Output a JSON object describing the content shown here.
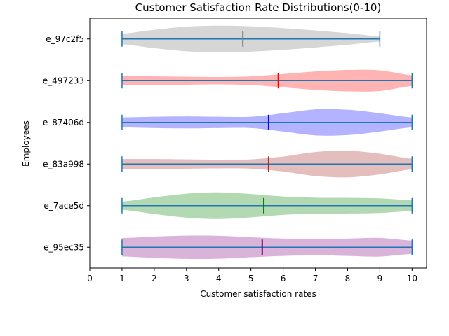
{
  "chart_data": {
    "type": "violin",
    "title": "Customer Satisfaction Rate Distributions(0-10)",
    "xlabel": "Customer satisfaction rates",
    "ylabel": "Employees",
    "xlim": [
      0,
      10.45
    ],
    "xticks": [
      0,
      1,
      2,
      3,
      4,
      5,
      6,
      7,
      8,
      9,
      10
    ],
    "grid": false,
    "series": [
      {
        "name": "e_97c2f5",
        "min": 1,
        "max": 9,
        "mean": 4.75,
        "color": "#808080",
        "fill": "#d6d6d6",
        "density": [
          [
            1,
            0.32
          ],
          [
            2,
            0.55
          ],
          [
            3,
            0.74
          ],
          [
            4,
            0.8
          ],
          [
            5,
            0.76
          ],
          [
            6,
            0.65
          ],
          [
            7,
            0.51
          ],
          [
            8,
            0.35
          ],
          [
            9,
            0.16
          ]
        ]
      },
      {
        "name": "e_497233",
        "min": 1,
        "max": 10,
        "mean": 5.85,
        "color": "#ff0000",
        "fill": "#ffb3b3",
        "density": [
          [
            1,
            0.28
          ],
          [
            2,
            0.26
          ],
          [
            3,
            0.24
          ],
          [
            4,
            0.22
          ],
          [
            5,
            0.26
          ],
          [
            6,
            0.4
          ],
          [
            7,
            0.55
          ],
          [
            8,
            0.64
          ],
          [
            9,
            0.62
          ],
          [
            10,
            0.32
          ]
        ]
      },
      {
        "name": "e_87406d",
        "min": 1,
        "max": 10,
        "mean": 5.55,
        "color": "#0000ff",
        "fill": "#b3b3ff",
        "density": [
          [
            1,
            0.3
          ],
          [
            2,
            0.34
          ],
          [
            3,
            0.36
          ],
          [
            4,
            0.34
          ],
          [
            5,
            0.34
          ],
          [
            6,
            0.55
          ],
          [
            7,
            0.78
          ],
          [
            8,
            0.76
          ],
          [
            9,
            0.55
          ],
          [
            10,
            0.3
          ]
        ]
      },
      {
        "name": "e_83a998",
        "min": 1,
        "max": 10,
        "mean": 5.55,
        "color": "#a52a2a",
        "fill": "#e4bdbd",
        "density": [
          [
            1,
            0.3
          ],
          [
            2,
            0.3
          ],
          [
            3,
            0.28
          ],
          [
            4,
            0.26
          ],
          [
            5,
            0.28
          ],
          [
            6,
            0.45
          ],
          [
            7,
            0.72
          ],
          [
            8,
            0.8
          ],
          [
            9,
            0.62
          ],
          [
            10,
            0.32
          ]
        ]
      },
      {
        "name": "e_7ace5d",
        "min": 1,
        "max": 10,
        "mean": 5.4,
        "color": "#008000",
        "fill": "#b3d9b3",
        "density": [
          [
            1,
            0.25
          ],
          [
            2,
            0.5
          ],
          [
            3,
            0.72
          ],
          [
            4,
            0.8
          ],
          [
            5,
            0.7
          ],
          [
            6,
            0.55
          ],
          [
            7,
            0.48
          ],
          [
            8,
            0.47
          ],
          [
            9,
            0.44
          ],
          [
            10,
            0.32
          ]
        ]
      },
      {
        "name": "e_95ec35",
        "min": 1,
        "max": 10,
        "mean": 5.35,
        "color": "#800080",
        "fill": "#d9b3d9",
        "density": [
          [
            1,
            0.55
          ],
          [
            2,
            0.64
          ],
          [
            3,
            0.7
          ],
          [
            4,
            0.69
          ],
          [
            5,
            0.6
          ],
          [
            6,
            0.52
          ],
          [
            7,
            0.48
          ],
          [
            8,
            0.52
          ],
          [
            9,
            0.56
          ],
          [
            10,
            0.4
          ]
        ]
      }
    ],
    "line_color": "#1f77b4"
  }
}
